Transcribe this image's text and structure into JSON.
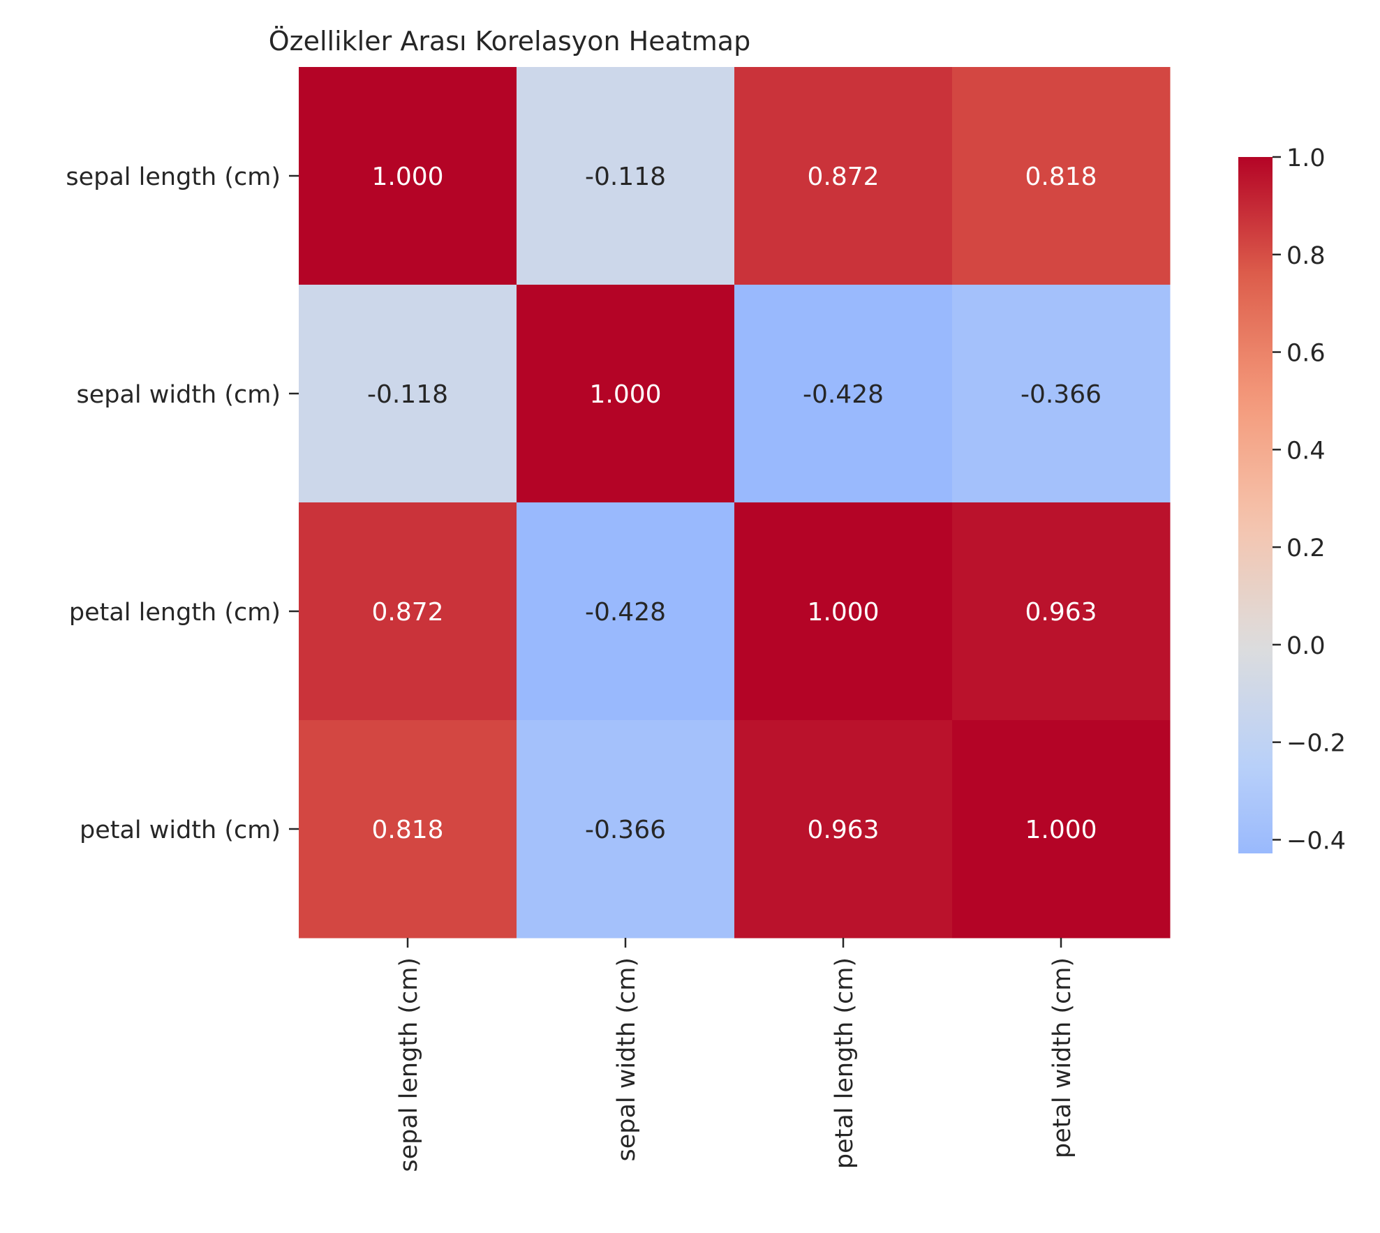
{
  "chart_data": {
    "type": "heatmap",
    "title": "Özellikler Arası Korelasyon Heatmap",
    "x_categories": [
      "sepal length (cm)",
      "sepal width (cm)",
      "petal length (cm)",
      "petal width (cm)"
    ],
    "y_categories": [
      "sepal length (cm)",
      "sepal width (cm)",
      "petal length (cm)",
      "petal width (cm)"
    ],
    "values": [
      [
        1.0,
        -0.118,
        0.872,
        0.818
      ],
      [
        -0.118,
        1.0,
        -0.428,
        -0.366
      ],
      [
        0.872,
        -0.428,
        1.0,
        0.963
      ],
      [
        0.818,
        -0.366,
        0.963,
        1.0
      ]
    ],
    "value_labels": [
      [
        "1.000",
        "-0.118",
        "0.872",
        "0.818"
      ],
      [
        "-0.118",
        "1.000",
        "-0.428",
        "-0.366"
      ],
      [
        "0.872",
        "-0.428",
        "1.000",
        "0.963"
      ],
      [
        "0.818",
        "-0.366",
        "0.963",
        "1.000"
      ]
    ],
    "colormap": "coolwarm",
    "colorbar": {
      "range": [
        -0.428,
        1.0
      ],
      "ticks": [
        1.0,
        0.8,
        0.6,
        0.4,
        0.2,
        0.0,
        -0.2,
        -0.4
      ],
      "tick_labels": [
        "1.0",
        "0.8",
        "0.6",
        "0.4",
        "0.2",
        "0.0",
        "−0.2",
        "−0.4"
      ]
    },
    "colors": {
      "low": "#3b4cc0",
      "mid": "#dddddd",
      "high": "#b40426"
    }
  }
}
